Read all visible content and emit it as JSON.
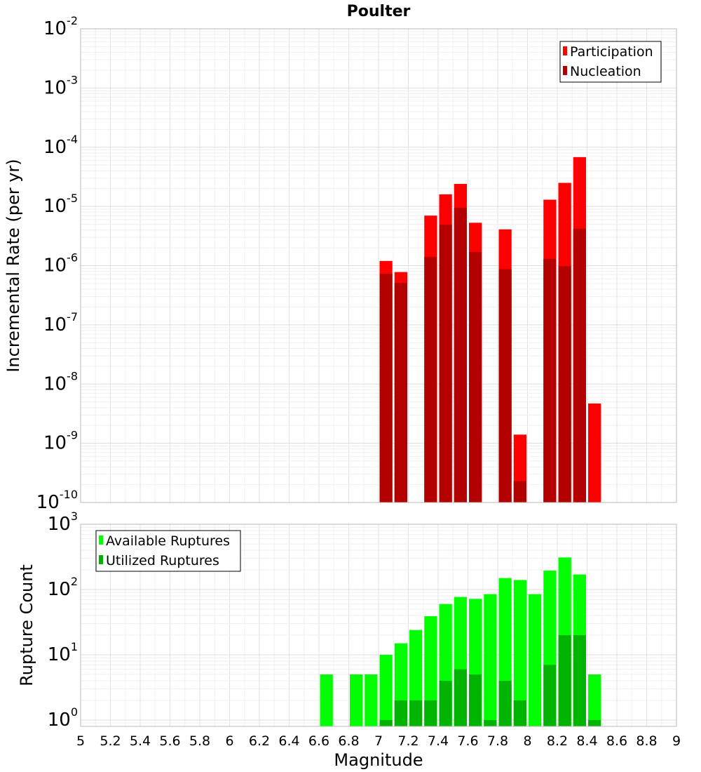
{
  "chart_data": [
    {
      "type": "bar",
      "title": "Poulter",
      "xlabel": "",
      "ylabel": "Incremental Rate (per yr)",
      "xlim": [
        5,
        9
      ],
      "ylim": [
        1e-10,
        0.01
      ],
      "yscale": "log",
      "grid": true,
      "legend_position": "top-right",
      "bar_width": 0.1,
      "series": [
        {
          "name": "Participation",
          "color": "#ff0000",
          "x": [
            7.05,
            7.15,
            7.35,
            7.45,
            7.55,
            7.65,
            7.85,
            7.95,
            8.15,
            8.25,
            8.35,
            8.45
          ],
          "values": [
            1.2e-06,
            7.8e-07,
            7e-06,
            1.6e-05,
            2.4e-05,
            5.3e-06,
            4.1e-06,
            1.4e-09,
            1.3e-05,
            2.5e-05,
            6.8e-05,
            4.7e-09
          ]
        },
        {
          "name": "Nucleation",
          "color": "#b30000",
          "x": [
            7.05,
            7.15,
            7.35,
            7.45,
            7.55,
            7.65,
            7.85,
            7.95,
            8.15,
            8.25,
            8.35
          ],
          "values": [
            7.3e-07,
            5.1e-07,
            1.4e-06,
            4.9e-06,
            9.5e-06,
            1.7e-06,
            8.7e-07,
            2.3e-10,
            1.3e-06,
            9.8e-07,
            4.2e-06
          ]
        }
      ]
    },
    {
      "type": "bar",
      "title": "",
      "xlabel": "Magnitude",
      "ylabel": "Rupture Count",
      "xlim": [
        5,
        9
      ],
      "ylim": [
        0.8,
        1000
      ],
      "yscale": "log",
      "grid": true,
      "legend_position": "top-left",
      "bar_width": 0.1,
      "x_ticks": [
        "5",
        "5.2",
        "5.4",
        "5.6",
        "5.8",
        "6",
        "6.2",
        "6.4",
        "6.6",
        "6.8",
        "7",
        "7.2",
        "7.4",
        "7.6",
        "7.8",
        "8",
        "8.2",
        "8.4",
        "8.6",
        "8.8",
        "9"
      ],
      "series": [
        {
          "name": "Available Ruptures",
          "color": "#00ff00",
          "x": [
            6.65,
            6.85,
            6.95,
            7.05,
            7.15,
            7.25,
            7.35,
            7.45,
            7.55,
            7.65,
            7.75,
            7.85,
            7.95,
            8.05,
            8.15,
            8.25,
            8.35,
            8.45
          ],
          "values": [
            5,
            5,
            5,
            10,
            15,
            24,
            39,
            60,
            77,
            72,
            85,
            150,
            140,
            85,
            195,
            310,
            170,
            5
          ]
        },
        {
          "name": "Utilized Ruptures",
          "color": "#00b300",
          "x": [
            7.05,
            7.15,
            7.25,
            7.35,
            7.45,
            7.55,
            7.65,
            7.75,
            7.85,
            7.95,
            8.15,
            8.25,
            8.35,
            8.45
          ],
          "values": [
            1,
            2,
            2,
            2,
            4,
            6,
            5,
            1,
            4,
            2,
            7,
            20,
            20,
            1
          ]
        }
      ]
    }
  ]
}
